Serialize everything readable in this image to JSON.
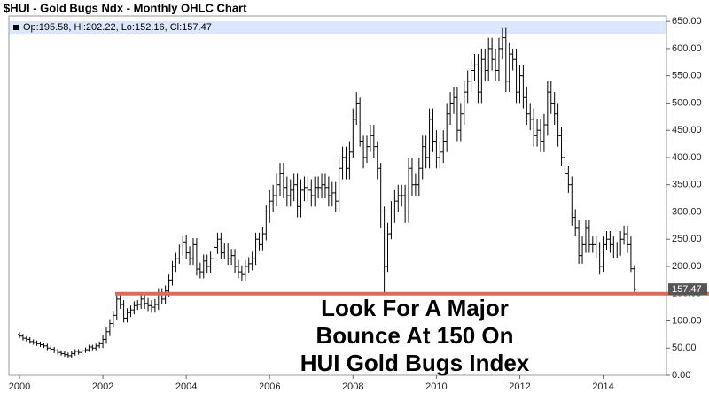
{
  "chart_data": {
    "type": "ohlc",
    "title": "$HUI - Gold Bugs Ndx - Monthly OHLC Chart",
    "info_line": "Op:195.58, Hi:202.22, Lo:152.16, Cl:157.47",
    "annotation": [
      "Look For A Major",
      "Bounce At 150 On",
      "HUI Gold Bugs Index"
    ],
    "reference_line": {
      "value": 150,
      "color": "#e0685a"
    },
    "color": "#000000",
    "grid": false,
    "ylim": [
      0,
      660
    ],
    "yticks": [
      {
        "value": 0,
        "label": "0.00"
      },
      {
        "value": 50,
        "label": "50.00"
      },
      {
        "value": 100,
        "label": "100.00"
      },
      {
        "value": 150,
        "label": "150.00"
      },
      {
        "value": 200,
        "label": "200.00"
      },
      {
        "value": 250,
        "label": "250.00"
      },
      {
        "value": 300,
        "label": "300.00"
      },
      {
        "value": 350,
        "label": "350.00"
      },
      {
        "value": 400,
        "label": "400.00"
      },
      {
        "value": 450,
        "label": "450.00"
      },
      {
        "value": 500,
        "label": "500.00"
      },
      {
        "value": 550,
        "label": "550.00"
      },
      {
        "value": 600,
        "label": "600.00"
      },
      {
        "value": 650,
        "label": "650.00"
      }
    ],
    "categories": [
      "2000",
      null,
      null,
      null,
      null,
      null,
      null,
      null,
      null,
      null,
      null,
      null,
      null,
      null,
      null,
      null,
      null,
      null,
      null,
      null,
      null,
      null,
      null,
      null,
      "2002",
      null,
      null,
      null,
      null,
      null,
      null,
      null,
      null,
      null,
      null,
      null,
      null,
      null,
      null,
      null,
      null,
      null,
      null,
      null,
      null,
      null,
      null,
      null,
      "2004",
      null,
      null,
      null,
      null,
      null,
      null,
      null,
      null,
      null,
      null,
      null,
      null,
      null,
      null,
      null,
      null,
      null,
      null,
      null,
      null,
      null,
      null,
      null,
      "2006",
      null,
      null,
      null,
      null,
      null,
      null,
      null,
      null,
      null,
      null,
      null,
      null,
      null,
      null,
      null,
      null,
      null,
      null,
      null,
      null,
      null,
      null,
      null,
      "2008",
      null,
      null,
      null,
      null,
      null,
      null,
      null,
      null,
      null,
      null,
      null,
      null,
      null,
      null,
      null,
      null,
      null,
      null,
      null,
      null,
      null,
      null,
      null,
      "2010",
      null,
      null,
      null,
      null,
      null,
      null,
      null,
      null,
      null,
      null,
      null,
      null,
      null,
      null,
      null,
      null,
      null,
      null,
      null,
      null,
      null,
      null,
      null,
      "2012",
      null,
      null,
      null,
      null,
      null,
      null,
      null,
      null,
      null,
      null,
      null,
      null,
      null,
      null,
      null,
      null,
      null,
      null,
      null,
      null,
      null,
      null,
      null,
      "2014",
      null,
      null,
      null,
      null,
      null,
      null,
      null,
      null,
      null
    ],
    "open": [
      75,
      72,
      68,
      66,
      62,
      60,
      58,
      56,
      54,
      50,
      48,
      45,
      42,
      40,
      38,
      36,
      40,
      44,
      42,
      45,
      47,
      52,
      50,
      54,
      58,
      66,
      80,
      95,
      110,
      140,
      130,
      105,
      115,
      120,
      128,
      130,
      140,
      132,
      128,
      125,
      130,
      150,
      140,
      155,
      175,
      200,
      215,
      230,
      245,
      225,
      215,
      240,
      195,
      190,
      210,
      200,
      215,
      235,
      250,
      225,
      230,
      215,
      220,
      200,
      190,
      185,
      200,
      205,
      215,
      250,
      240,
      260,
      300,
      320,
      330,
      350,
      370,
      345,
      330,
      340,
      350,
      310,
      340,
      345,
      340,
      330,
      345,
      345,
      350,
      345,
      330,
      335,
      320,
      380,
      400,
      380,
      410,
      470,
      500,
      430,
      400,
      420,
      440,
      420,
      380,
      300,
      200,
      260,
      300,
      320,
      330,
      330,
      300,
      380,
      350,
      350,
      380,
      420,
      400,
      470,
      430,
      400,
      410,
      430,
      480,
      500,
      510,
      450,
      480,
      520,
      540,
      560,
      570,
      520,
      580,
      560,
      600,
      580,
      560,
      600,
      620,
      540,
      590,
      580,
      520,
      550,
      510,
      480,
      470,
      440,
      450,
      430,
      460,
      520,
      500,
      480,
      440,
      400,
      370,
      350,
      290,
      270,
      220,
      240,
      270,
      240,
      240,
      230,
      200,
      240,
      250,
      240,
      230,
      230,
      250,
      260,
      240,
      195.58
    ],
    "high": [
      79,
      76,
      72,
      70,
      66,
      64,
      62,
      60,
      58,
      54,
      52,
      49,
      46,
      44,
      42,
      44,
      48,
      48,
      49,
      51,
      56,
      56,
      58,
      62,
      74,
      88,
      103,
      118,
      148,
      148,
      138,
      123,
      128,
      136,
      138,
      148,
      150,
      142,
      138,
      140,
      160,
      160,
      165,
      185,
      210,
      225,
      240,
      255,
      257,
      237,
      252,
      252,
      207,
      222,
      222,
      227,
      247,
      262,
      262,
      242,
      242,
      232,
      232,
      212,
      202,
      212,
      217,
      227,
      262,
      262,
      272,
      312,
      340,
      350,
      370,
      390,
      390,
      365,
      360,
      370,
      370,
      360,
      365,
      365,
      360,
      365,
      365,
      370,
      370,
      365,
      355,
      355,
      400,
      420,
      420,
      430,
      490,
      520,
      510,
      440,
      440,
      460,
      460,
      430,
      390,
      310,
      280,
      320,
      340,
      350,
      350,
      350,
      400,
      400,
      370,
      400,
      440,
      440,
      490,
      490,
      450,
      430,
      450,
      500,
      520,
      530,
      530,
      500,
      540,
      560,
      580,
      590,
      590,
      600,
      600,
      620,
      620,
      600,
      620,
      638,
      638,
      610,
      600,
      600,
      570,
      570,
      530,
      500,
      490,
      470,
      470,
      480,
      540,
      540,
      520,
      500,
      455,
      415,
      385,
      365,
      305,
      285,
      255,
      285,
      285,
      255,
      255,
      245,
      255,
      265,
      265,
      255,
      245,
      265,
      275,
      275,
      255,
      202.22
    ],
    "low": [
      68,
      64,
      62,
      58,
      56,
      54,
      52,
      50,
      46,
      44,
      41,
      38,
      36,
      34,
      32,
      32,
      36,
      38,
      38,
      41,
      43,
      46,
      46,
      50,
      50,
      58,
      72,
      87,
      102,
      122,
      97,
      97,
      107,
      112,
      120,
      122,
      122,
      118,
      115,
      115,
      120,
      130,
      130,
      145,
      165,
      190,
      205,
      220,
      213,
      203,
      203,
      183,
      178,
      178,
      188,
      188,
      203,
      223,
      213,
      213,
      203,
      203,
      188,
      178,
      173,
      173,
      188,
      193,
      203,
      228,
      228,
      248,
      280,
      300,
      310,
      330,
      325,
      310,
      310,
      320,
      290,
      290,
      320,
      320,
      310,
      310,
      325,
      325,
      325,
      310,
      310,
      300,
      300,
      360,
      360,
      360,
      400,
      460,
      420,
      380,
      390,
      410,
      400,
      360,
      270,
      150,
      190,
      250,
      280,
      300,
      310,
      280,
      280,
      330,
      330,
      330,
      360,
      380,
      380,
      410,
      380,
      380,
      390,
      410,
      460,
      480,
      430,
      430,
      460,
      500,
      520,
      540,
      500,
      500,
      540,
      540,
      560,
      540,
      540,
      580,
      520,
      520,
      560,
      500,
      500,
      490,
      460,
      450,
      420,
      420,
      410,
      410,
      440,
      480,
      460,
      420,
      385,
      355,
      335,
      275,
      255,
      205,
      205,
      225,
      225,
      225,
      215,
      185,
      190,
      230,
      225,
      215,
      215,
      220,
      240,
      225,
      190,
      152.16
    ],
    "close": [
      72,
      68,
      66,
      62,
      60,
      58,
      56,
      54,
      50,
      48,
      45,
      42,
      40,
      38,
      36,
      40,
      44,
      42,
      45,
      47,
      52,
      50,
      54,
      58,
      66,
      80,
      95,
      110,
      140,
      130,
      105,
      115,
      120,
      128,
      130,
      140,
      132,
      128,
      125,
      130,
      150,
      140,
      155,
      175,
      200,
      215,
      230,
      245,
      225,
      215,
      240,
      195,
      190,
      210,
      200,
      215,
      235,
      250,
      225,
      230,
      215,
      220,
      200,
      190,
      185,
      200,
      205,
      215,
      250,
      240,
      260,
      300,
      320,
      330,
      350,
      370,
      345,
      330,
      340,
      350,
      310,
      340,
      345,
      340,
      330,
      345,
      345,
      350,
      345,
      330,
      335,
      320,
      380,
      400,
      380,
      410,
      470,
      500,
      430,
      400,
      420,
      440,
      420,
      380,
      300,
      200,
      260,
      300,
      320,
      330,
      330,
      300,
      380,
      350,
      350,
      380,
      420,
      400,
      470,
      430,
      400,
      410,
      430,
      480,
      500,
      510,
      450,
      480,
      520,
      540,
      560,
      570,
      520,
      580,
      560,
      600,
      580,
      560,
      600,
      620,
      540,
      590,
      580,
      520,
      550,
      510,
      480,
      470,
      440,
      450,
      430,
      460,
      520,
      500,
      480,
      440,
      400,
      370,
      350,
      290,
      270,
      220,
      240,
      270,
      240,
      240,
      230,
      200,
      240,
      250,
      240,
      230,
      230,
      250,
      260,
      240,
      195.58,
      157.47
    ]
  }
}
